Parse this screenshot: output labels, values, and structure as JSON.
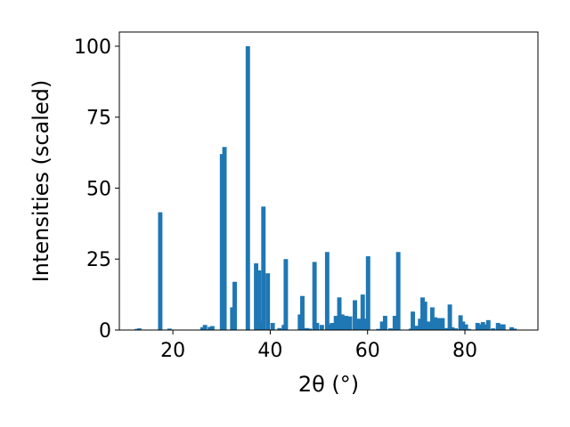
{
  "chart_data": {
    "type": "bar",
    "xlabel": "2θ (°)",
    "ylabel": "Intensities (scaled)",
    "xlim": [
      9,
      95
    ],
    "ylim": [
      0,
      105
    ],
    "xticks": [
      20,
      40,
      60,
      80
    ],
    "yticks": [
      0,
      25,
      50,
      75,
      100
    ],
    "grid": false,
    "bar_color": "#1f77b4",
    "bar_width": 0.9,
    "x": [
      12.6,
      13.1,
      17.4,
      19.3,
      26.1,
      26.6,
      27.6,
      28.1,
      30.1,
      30.6,
      32.2,
      32.7,
      35.4,
      37.1,
      37.7,
      38.2,
      38.6,
      39.5,
      40.5,
      41.9,
      42.8,
      43.2,
      46.1,
      46.6,
      47.5,
      48.1,
      49.1,
      49.6,
      50.6,
      51.7,
      52.1,
      52.7,
      53.5,
      54.2,
      54.8,
      55.6,
      56.4,
      57.4,
      58.3,
      59.0,
      59.5,
      60.1,
      62.2,
      63.0,
      63.6,
      64.7,
      65.6,
      66.3,
      68.9,
      69.3,
      70.2,
      70.8,
      71.3,
      71.8,
      72.5,
      73.3,
      73.9,
      74.6,
      75.4,
      76.2,
      76.9,
      77.4,
      78.1,
      79.1,
      79.6,
      80.2,
      80.8,
      82.6,
      83.1,
      83.7,
      84.2,
      84.8,
      85.8,
      86.8,
      87.4,
      87.9,
      89.6,
      90.2
    ],
    "values": [
      0.4,
      0.6,
      41.5,
      0.5,
      1.0,
      1.8,
      1.1,
      1.4,
      62.0,
      64.5,
      8.0,
      17.0,
      100.0,
      23.5,
      21.0,
      3.0,
      43.5,
      20.0,
      2.5,
      0.7,
      1.8,
      25.0,
      5.5,
      12.0,
      0.7,
      0.5,
      24.0,
      2.5,
      1.8,
      27.5,
      2.0,
      2.5,
      5.0,
      11.5,
      5.5,
      5.0,
      4.8,
      10.5,
      4.0,
      12.5,
      4.0,
      26.0,
      0.4,
      3.0,
      5.0,
      0.6,
      5.0,
      27.5,
      0.5,
      6.5,
      1.5,
      4.0,
      11.5,
      10.0,
      3.0,
      8.0,
      4.5,
      4.2,
      4.2,
      0.7,
      9.0,
      1.0,
      0.6,
      5.2,
      3.0,
      2.0,
      0.4,
      2.5,
      2.0,
      2.8,
      2.0,
      3.5,
      0.6,
      2.5,
      2.0,
      2.0,
      1.0,
      0.5
    ]
  }
}
